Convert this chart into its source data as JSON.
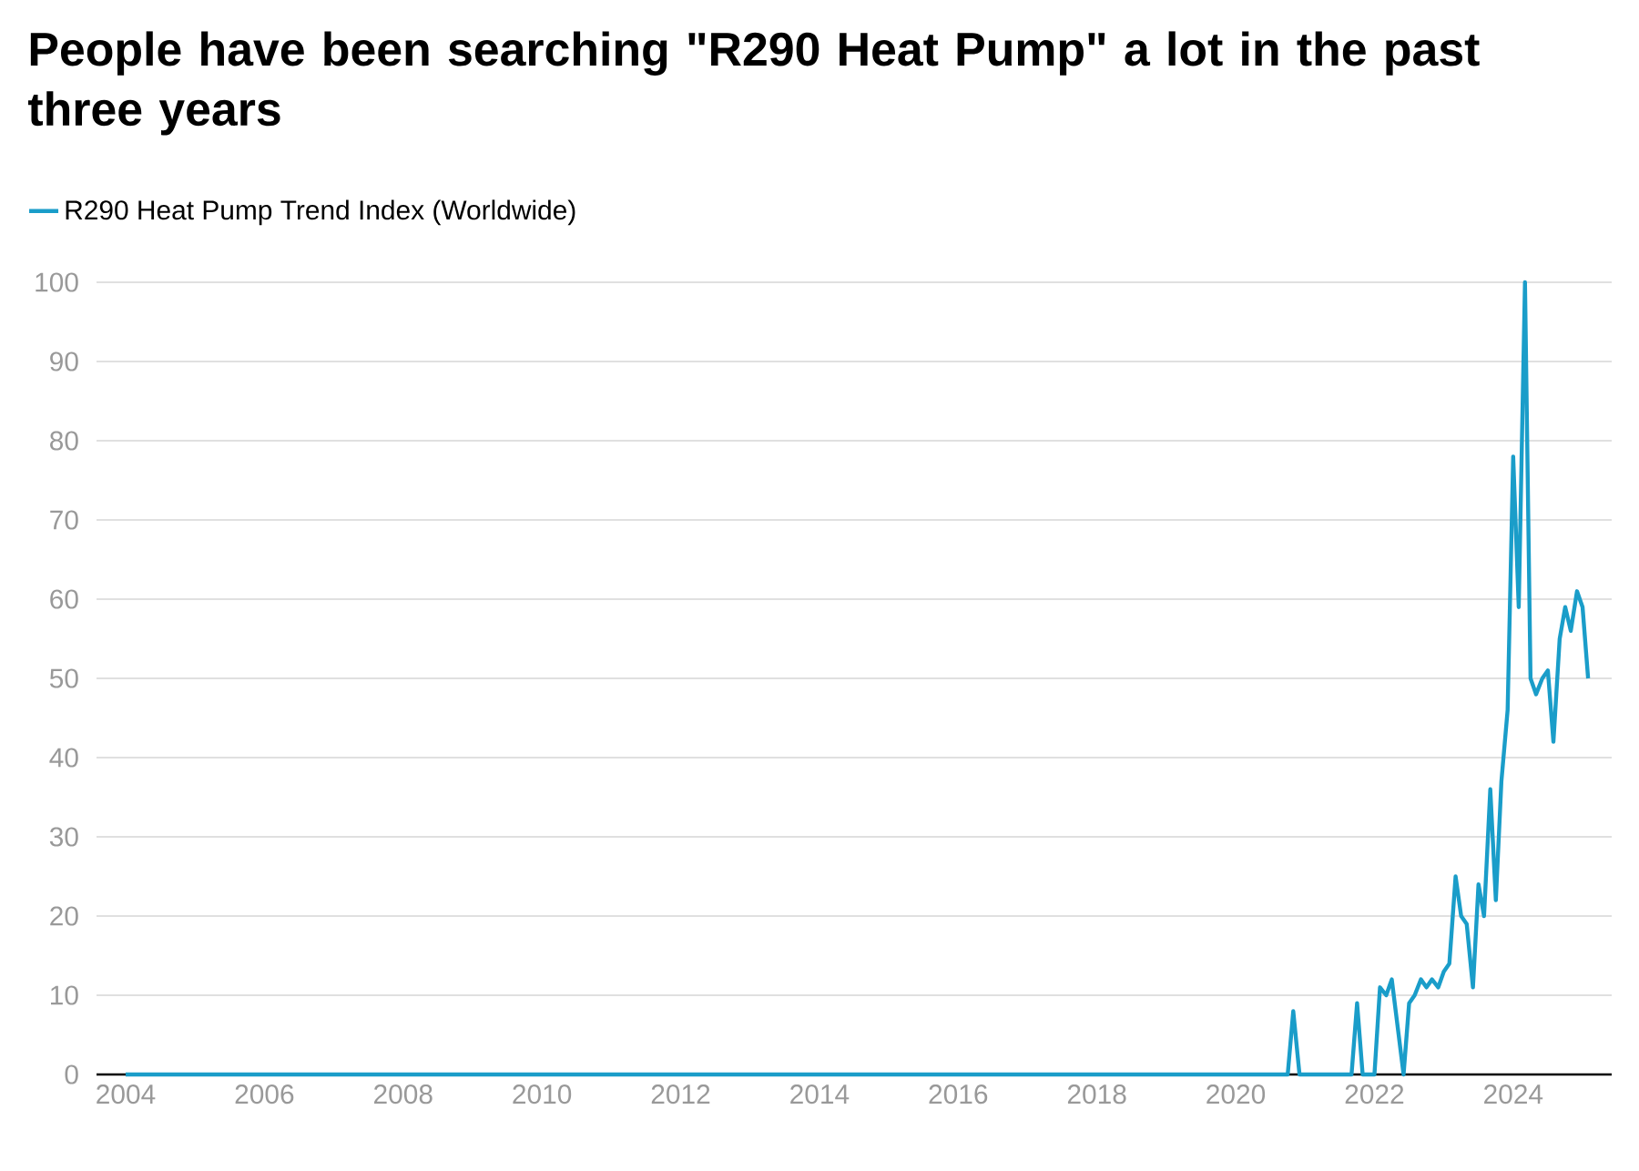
{
  "chart_data": {
    "type": "line",
    "title": "People have been searching \"R290 Heat Pump\" a lot in the past three years",
    "x": [
      "2004-01",
      "2020-10",
      "2020-11",
      "2020-12",
      "2021-09",
      "2021-10",
      "2021-11",
      "2022-01",
      "2022-02",
      "2022-03",
      "2022-04",
      "2022-06",
      "2022-07",
      "2022-08",
      "2022-09",
      "2022-10",
      "2022-11",
      "2022-12",
      "2023-01",
      "2023-02",
      "2023-03",
      "2023-04",
      "2023-05",
      "2023-06",
      "2023-07",
      "2023-08",
      "2023-09",
      "2023-10",
      "2023-11",
      "2023-12",
      "2024-01",
      "2024-02",
      "2024-03",
      "2024-04",
      "2024-05",
      "2024-06",
      "2024-07",
      "2024-08",
      "2024-09",
      "2024-10",
      "2024-11",
      "2024-12",
      "2025-01",
      "2025-02"
    ],
    "series": [
      {
        "name": "R290 Heat Pump Trend Index (Worldwide)",
        "color": "#1a9dc9",
        "values": [
          0,
          0,
          8,
          0,
          0,
          9,
          0,
          0,
          11,
          10,
          12,
          0,
          9,
          10,
          12,
          11,
          12,
          11,
          13,
          14,
          25,
          20,
          19,
          11,
          24,
          20,
          36,
          22,
          37,
          46,
          78,
          59,
          100,
          50,
          48,
          50,
          51,
          42,
          55,
          59,
          56,
          61,
          59,
          50
        ]
      }
    ],
    "xlim": [
      "2003-08",
      "2025-06"
    ],
    "xticks": [
      "2004",
      "2006",
      "2008",
      "2010",
      "2012",
      "2014",
      "2016",
      "2018",
      "2020",
      "2022",
      "2024"
    ],
    "ylim": [
      0,
      100
    ],
    "yticks": [
      0,
      10,
      20,
      30,
      40,
      50,
      60,
      70,
      80,
      90,
      100
    ],
    "grid": "y",
    "legend": "top left",
    "marker": "none"
  }
}
